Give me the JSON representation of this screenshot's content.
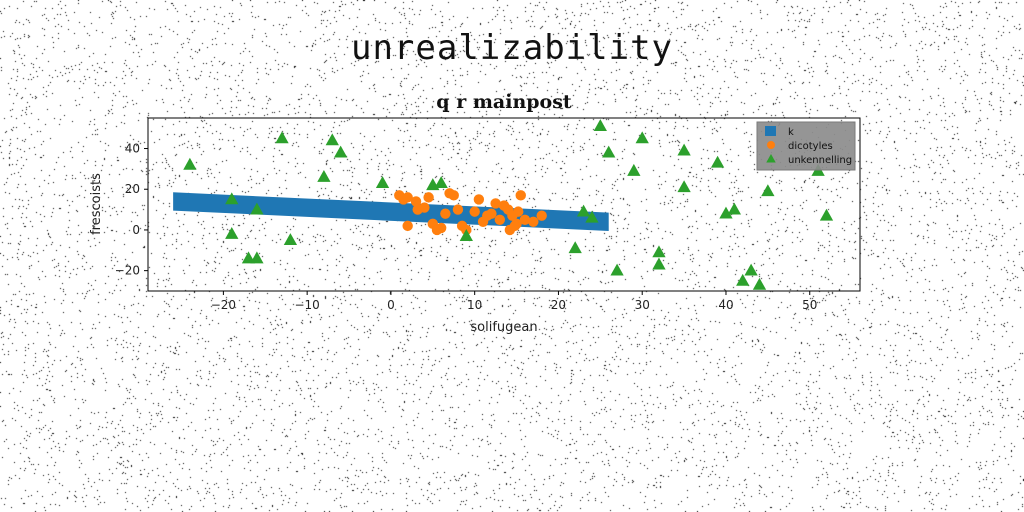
{
  "page": {
    "title": "unrealizability"
  },
  "chart_data": {
    "type": "scatter",
    "title": "q r mainpost",
    "xlabel": "solifugean",
    "ylabel": "frescoists",
    "xlim": [
      -29,
      56
    ],
    "ylim": [
      -30,
      55
    ],
    "xticks": [
      -20,
      -10,
      0,
      10,
      20,
      30,
      40,
      50
    ],
    "yticks": [
      -20,
      0,
      20,
      40
    ],
    "grid": false,
    "legend_position": "top-right",
    "series": [
      {
        "name": "k",
        "kind": "band",
        "color": "#1f77b4",
        "x": [
          -26,
          26
        ],
        "y_center": [
          14,
          4
        ],
        "half_width": 4.5
      },
      {
        "name": "dicotyles",
        "kind": "points",
        "marker": "circle",
        "color": "#ff7f0e",
        "points": [
          [
            1.0,
            17
          ],
          [
            1.5,
            15
          ],
          [
            2.0,
            16
          ],
          [
            2.0,
            2
          ],
          [
            3.0,
            14
          ],
          [
            3.2,
            10
          ],
          [
            4.0,
            11
          ],
          [
            4.5,
            16
          ],
          [
            5.0,
            3
          ],
          [
            5.5,
            0
          ],
          [
            6.0,
            1
          ],
          [
            6.5,
            8
          ],
          [
            7.0,
            18
          ],
          [
            7.5,
            17
          ],
          [
            8.0,
            10
          ],
          [
            8.5,
            2
          ],
          [
            9.0,
            0
          ],
          [
            10.0,
            9
          ],
          [
            10.5,
            15
          ],
          [
            11.0,
            4
          ],
          [
            11.5,
            7
          ],
          [
            12.0,
            8
          ],
          [
            12.5,
            13
          ],
          [
            13.0,
            5
          ],
          [
            13.5,
            12
          ],
          [
            14.0,
            10
          ],
          [
            14.2,
            0
          ],
          [
            14.5,
            7
          ],
          [
            15.0,
            3
          ],
          [
            15.2,
            9
          ],
          [
            15.5,
            17
          ],
          [
            16.0,
            5
          ],
          [
            17.0,
            4
          ],
          [
            18.0,
            7
          ],
          [
            14.8,
            2
          ]
        ]
      },
      {
        "name": "unkennelling",
        "kind": "points",
        "marker": "triangle",
        "color": "#2ca02c",
        "points": [
          [
            -24,
            32
          ],
          [
            -19,
            15
          ],
          [
            -19,
            -2
          ],
          [
            -17,
            -14
          ],
          [
            -16,
            10
          ],
          [
            -16,
            -14
          ],
          [
            -12,
            -5
          ],
          [
            -13,
            45
          ],
          [
            -8,
            26
          ],
          [
            -7,
            44
          ],
          [
            -6,
            38
          ],
          [
            -1,
            23
          ],
          [
            5,
            22
          ],
          [
            6,
            23
          ],
          [
            9,
            -3
          ],
          [
            22,
            -9
          ],
          [
            23,
            9
          ],
          [
            24,
            6
          ],
          [
            25,
            51
          ],
          [
            26,
            38
          ],
          [
            27,
            -20
          ],
          [
            29,
            29
          ],
          [
            30,
            45
          ],
          [
            32,
            -11
          ],
          [
            32,
            -17
          ],
          [
            35,
            39
          ],
          [
            35,
            21
          ],
          [
            39,
            33
          ],
          [
            40,
            8
          ],
          [
            41,
            10
          ],
          [
            42,
            -25
          ],
          [
            43,
            -20
          ],
          [
            44,
            -27
          ],
          [
            45,
            19
          ],
          [
            51,
            29
          ],
          [
            52,
            7
          ]
        ]
      }
    ]
  }
}
